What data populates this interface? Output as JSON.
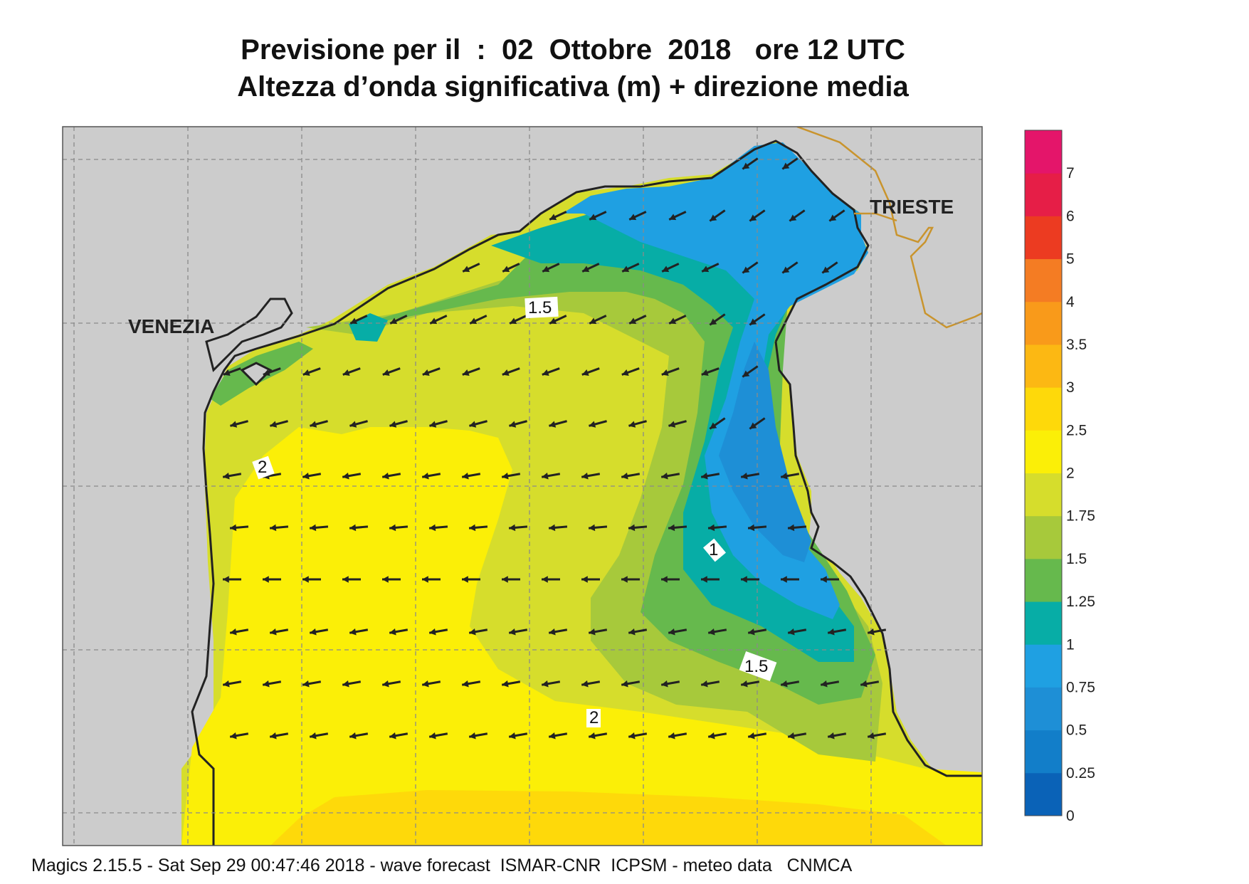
{
  "title": {
    "line1": "Previsione per il  :  02  Ottobre  2018   ore 12 UTC",
    "line2": "Altezza d’onda significativa (m) + direzione media"
  },
  "cities": {
    "venezia": "VENEZIA",
    "trieste": "TRIESTE"
  },
  "contour_labels": {
    "c15a": "1.5",
    "c2a": "2",
    "c1": "1",
    "c15b": "1.5",
    "c2b": "2"
  },
  "colorbar": {
    "ticks": [
      "0",
      "0.25",
      "0.5",
      "0.75",
      "1",
      "1.25",
      "1.5",
      "1.75",
      "2",
      "2.5",
      "3",
      "3.5",
      "4",
      "5",
      "6",
      "7"
    ],
    "colors": [
      "#0a62b7",
      "#127ec9",
      "#1e8fd6",
      "#1fa0e2",
      "#07ada6",
      "#66b94d",
      "#a7c93b",
      "#d6dd2c",
      "#fbef07",
      "#fed90a",
      "#fcb813",
      "#f99a1a",
      "#f47c23",
      "#ec3b21",
      "#e61e47",
      "#e4156a"
    ]
  },
  "footer": "Magics 2.15.5 - Sat Sep 29 00:47:46 2018 - wave forecast  ISMAR-CNR  ICPSM - meteo data   CNMCA",
  "map_colors": {
    "land": "#cccccc",
    "coast": "#222222",
    "border": "#c9942d",
    "grid": "#8a8a8a"
  }
}
